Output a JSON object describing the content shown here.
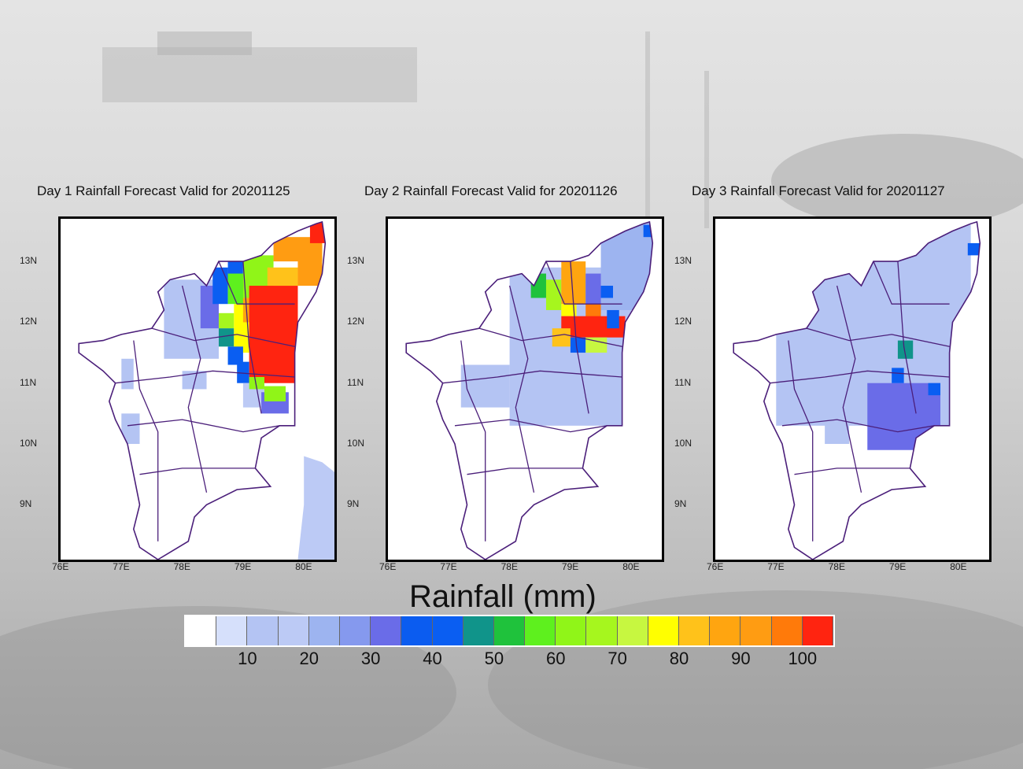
{
  "panels": [
    {
      "title": "Day 1 Rainfall Forecast Valid for 20201125",
      "cells": [
        [
          77.7,
          11.4,
          78.6,
          12.7,
          12
        ],
        [
          78.3,
          11.9,
          78.6,
          12.6,
          32
        ],
        [
          78.5,
          12.3,
          78.75,
          12.9,
          42
        ],
        [
          78.75,
          12.6,
          79.0,
          13.05,
          42
        ],
        [
          78.75,
          12.3,
          79.25,
          12.8,
          55
        ],
        [
          79.0,
          12.4,
          79.5,
          13.1,
          63
        ],
        [
          78.6,
          11.9,
          78.85,
          12.15,
          65
        ],
        [
          78.6,
          11.6,
          78.85,
          11.9,
          47
        ],
        [
          78.85,
          11.5,
          79.1,
          12.3,
          78
        ],
        [
          79.0,
          12.0,
          79.3,
          12.4,
          88
        ],
        [
          79.1,
          11.0,
          79.9,
          12.6,
          100
        ],
        [
          79.4,
          12.6,
          79.9,
          12.9,
          80
        ],
        [
          79.9,
          12.6,
          80.3,
          13.3,
          90
        ],
        [
          79.5,
          13.0,
          80.3,
          13.4,
          92
        ],
        [
          80.1,
          13.3,
          80.4,
          13.7,
          100
        ],
        [
          78.75,
          11.3,
          79.0,
          11.6,
          40
        ],
        [
          78.9,
          11.0,
          79.1,
          11.35,
          40
        ],
        [
          79.0,
          10.6,
          79.35,
          11.0,
          15
        ],
        [
          79.1,
          10.9,
          79.35,
          11.1,
          63
        ],
        [
          79.3,
          10.5,
          79.75,
          10.85,
          30
        ],
        [
          79.35,
          10.7,
          79.7,
          10.95,
          62
        ],
        [
          77.0,
          10.0,
          77.3,
          10.5,
          10
        ],
        [
          77.0,
          10.9,
          77.2,
          11.4,
          10
        ],
        [
          78.0,
          10.9,
          78.4,
          11.2,
          12
        ]
      ],
      "sea": [
        [
          80.0,
          9.8
        ],
        [
          80.3,
          9.7
        ],
        [
          80.55,
          9.5
        ],
        [
          80.55,
          8.1
        ],
        [
          79.9,
          8.1
        ],
        [
          80.0,
          9.0
        ]
      ],
      "sea_value": 15
    },
    {
      "title": "Day 2 Rainfall Forecast Valid for 20201126",
      "cells": [
        [
          78.0,
          10.3,
          80.0,
          12.9,
          12
        ],
        [
          77.2,
          10.6,
          78.0,
          11.3,
          10
        ],
        [
          79.5,
          12.2,
          80.4,
          13.7,
          20
        ],
        [
          78.35,
          12.4,
          78.6,
          12.8,
          50
        ],
        [
          78.6,
          12.2,
          78.85,
          12.7,
          65
        ],
        [
          78.85,
          12.3,
          79.25,
          13.0,
          88
        ],
        [
          78.85,
          12.1,
          79.1,
          12.3,
          78
        ],
        [
          79.25,
          12.3,
          79.5,
          12.8,
          30
        ],
        [
          79.25,
          12.0,
          79.5,
          12.3,
          95
        ],
        [
          78.85,
          11.75,
          79.9,
          12.1,
          100
        ],
        [
          78.7,
          11.6,
          79.0,
          11.9,
          80
        ],
        [
          79.0,
          11.5,
          79.25,
          11.75,
          40
        ],
        [
          79.25,
          11.5,
          79.6,
          11.75,
          70
        ],
        [
          79.6,
          11.9,
          79.8,
          12.2,
          40
        ],
        [
          79.5,
          12.4,
          79.7,
          12.6,
          40
        ],
        [
          80.2,
          13.4,
          80.35,
          13.6,
          40
        ]
      ]
    },
    {
      "title": "Day 3 Rainfall Forecast Valid for 20201127",
      "cells": [
        [
          77.0,
          10.3,
          80.2,
          13.6,
          14
        ],
        [
          78.5,
          9.9,
          79.7,
          11.0,
          30
        ],
        [
          78.9,
          11.0,
          79.1,
          11.25,
          40
        ],
        [
          79.0,
          11.4,
          79.25,
          11.7,
          47
        ],
        [
          79.5,
          10.8,
          79.7,
          11.0,
          40
        ],
        [
          80.15,
          13.1,
          80.35,
          13.3,
          40
        ],
        [
          79.2,
          10.3,
          79.6,
          10.6,
          32
        ],
        [
          77.8,
          10.0,
          78.2,
          10.4,
          12
        ]
      ]
    }
  ],
  "lat_ticks": [
    {
      "v": 13,
      "label": "13N"
    },
    {
      "v": 12,
      "label": "12N"
    },
    {
      "v": 11,
      "label": "11N"
    },
    {
      "v": 10,
      "label": "10N"
    },
    {
      "v": 9,
      "label": "9N"
    }
  ],
  "lon_ticks": [
    {
      "v": 76,
      "label": "76E"
    },
    {
      "v": 77,
      "label": "77E"
    },
    {
      "v": 78,
      "label": "78E"
    },
    {
      "v": 79,
      "label": "79E"
    },
    {
      "v": 80,
      "label": "80E"
    }
  ],
  "colorbar": {
    "title": "Rainfall (mm)",
    "colors": [
      "#ffffff",
      "#d6e0fb",
      "#b4c4f3",
      "#bccaf5",
      "#9db4f0",
      "#8599ee",
      "#6a6ce8",
      "#0b5cf0",
      "#0a5ef2",
      "#10948a",
      "#1fc23c",
      "#5ef01e",
      "#90f518",
      "#a6f61e",
      "#c7f740",
      "#ffff00",
      "#ffc21a",
      "#ffa510",
      "#ff9c12",
      "#ff7a0a",
      "#ff2410"
    ],
    "labels": [
      "10",
      "20",
      "30",
      "40",
      "50",
      "60",
      "70",
      "80",
      "90",
      "100"
    ]
  },
  "boundary_color": "#4b1f7a"
}
